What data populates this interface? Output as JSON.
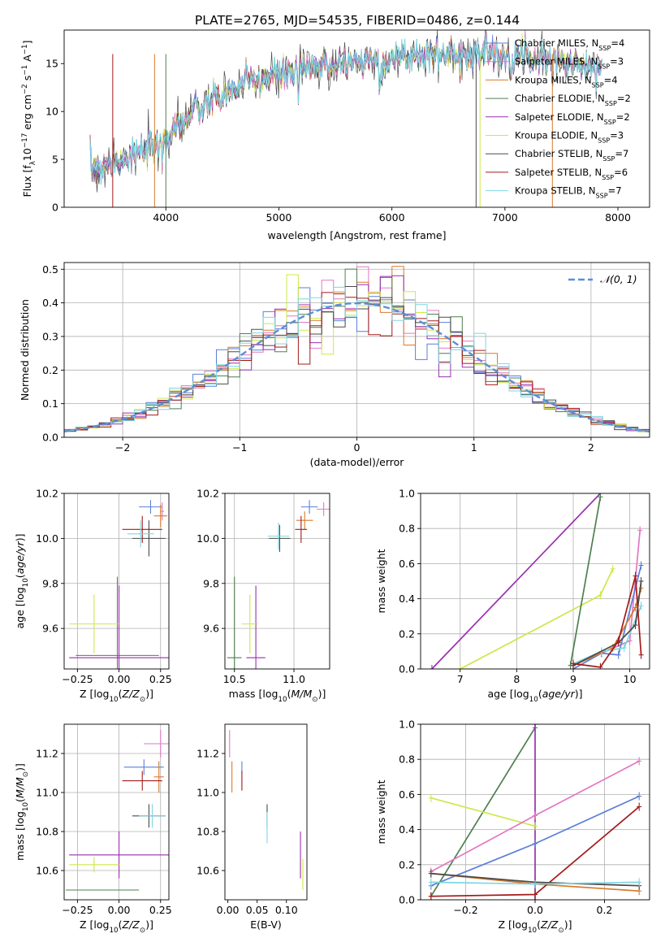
{
  "figure": {
    "title": "PLATE=2765, MJD=54535, FIBERID=0486, z=0.144"
  },
  "colors": {
    "chabrier_miles": "#5b7fd9",
    "salpeter_miles": "#e377c2",
    "kroupa_miles": "#d97a2b",
    "chabrier_elodie": "#4f7f4f",
    "salpeter_elodie": "#9a2fb0",
    "kroupa_elodie": "#cde84a",
    "chabrier_stelib": "#4a4a4a",
    "salpeter_stelib": "#a31a1a",
    "kroupa_stelib": "#7fd6e0",
    "gauss": "#5b8fd6",
    "grid": "#b0b0b0"
  },
  "chart_data": [
    {
      "id": "spectrum",
      "type": "line",
      "title": "PLATE=2765, MJD=54535, FIBERID=0486, z=0.144",
      "xlabel": "wavelength [Angstrom, rest frame]",
      "ylabel": "Flux [fλ10⁻¹⁷ erg cm⁻² s⁻¹ A⁻¹]",
      "xlim": [
        3100,
        8280
      ],
      "ylim": [
        0,
        18.5
      ],
      "xticks": [
        4000,
        5000,
        6000,
        7000,
        8000
      ],
      "yticks": [
        0,
        5,
        10,
        15
      ],
      "grid": false,
      "legend_position": "top-right",
      "series": [
        {
          "name": "Chabrier MILES, N",
          "sub": "SSP",
          "suffix": "=4",
          "color": "#5b7fd9"
        },
        {
          "name": "Salpeter MILES, N",
          "sub": "SSP",
          "suffix": "=3",
          "color": "#e377c2"
        },
        {
          "name": "Kroupa MILES, N",
          "sub": "SSP",
          "suffix": "=4",
          "color": "#d97a2b"
        },
        {
          "name": "Chabrier ELODIE, N",
          "sub": "SSP",
          "suffix": "=2",
          "color": "#4f7f4f"
        },
        {
          "name": "Salpeter ELODIE, N",
          "sub": "SSP",
          "suffix": "=2",
          "color": "#9a2fb0"
        },
        {
          "name": "Kroupa ELODIE, N",
          "sub": "SSP",
          "suffix": "=3",
          "color": "#cde84a"
        },
        {
          "name": "Chabrier STELIB, N",
          "sub": "SSP",
          "suffix": "=7",
          "color": "#4a4a4a"
        },
        {
          "name": "Salpeter STELIB, N",
          "sub": "SSP",
          "suffix": "=6",
          "color": "#a31a1a"
        },
        {
          "name": "Kroupa STELIB, N",
          "sub": "SSP",
          "suffix": "=7",
          "color": "#7fd6e0"
        }
      ],
      "continuum_x": [
        3330,
        3500,
        3700,
        3900,
        4100,
        4300,
        4500,
        4700,
        4900,
        5100,
        5300,
        5500,
        5700,
        5900,
        6100,
        6300,
        6500,
        6700,
        6900,
        7100,
        7300,
        7500,
        7700,
        7860
      ],
      "continuum_y": [
        4.3,
        4.6,
        5.4,
        6.3,
        8.6,
        10.2,
        11.6,
        12.8,
        13.6,
        14.0,
        14.5,
        15.0,
        15.3,
        15.4,
        15.6,
        15.8,
        16.0,
        16.0,
        16.0,
        16.0,
        15.7,
        15.2,
        14.8,
        14.4
      ],
      "noise_amplitude": 1.2
    },
    {
      "id": "residuals",
      "type": "histogram",
      "xlabel": "(data-model)/error",
      "ylabel": "Normed distribution",
      "xlim": [
        -2.5,
        2.5
      ],
      "ylim": [
        0,
        0.52
      ],
      "xticks": [
        -2,
        -1,
        0,
        1,
        2
      ],
      "yticks": [
        0.0,
        0.1,
        0.2,
        0.3,
        0.4,
        0.5
      ],
      "grid": true,
      "legend_position": "top-right",
      "legend_label": "𝒩(0, 1)",
      "bin_width": 0.1,
      "gaussian": {
        "mean": 0,
        "sigma": 1
      }
    },
    {
      "id": "age_Z",
      "type": "scatter",
      "xlabel": "Z [log₁₀(Z/Z⊙)]",
      "ylabel": "age  [log₁₀(age/yr)]",
      "xlim": [
        -0.33,
        0.3
      ],
      "ylim": [
        9.42,
        10.2
      ],
      "xticks": [
        -0.25,
        0.0,
        0.25
      ],
      "yticks": [
        9.6,
        9.8,
        10.0,
        10.2
      ],
      "grid": true,
      "points": [
        {
          "c": "chabrier_miles",
          "x": 0.19,
          "y": 10.14,
          "xe": 0.07,
          "ye": 0.03
        },
        {
          "c": "salpeter_miles",
          "x": 0.26,
          "y": 10.12,
          "xe": 0.01,
          "ye": 0.04
        },
        {
          "c": "kroupa_miles",
          "x": 0.25,
          "y": 10.1,
          "xe": 0.04,
          "ye": 0.05
        },
        {
          "c": "chabrier_elodie",
          "x": -0.01,
          "y": 9.48,
          "xe": 0.25,
          "ye": 0.35
        },
        {
          "c": "salpeter_elodie",
          "x": 0.0,
          "y": 9.47,
          "xe": 0.3,
          "ye": 0.32
        },
        {
          "c": "kroupa_elodie",
          "x": -0.15,
          "y": 9.62,
          "xe": 0.15,
          "ye": 0.13
        },
        {
          "c": "chabrier_stelib",
          "x": 0.18,
          "y": 10.0,
          "xe": 0.1,
          "ye": 0.08
        },
        {
          "c": "salpeter_stelib",
          "x": 0.14,
          "y": 10.04,
          "xe": 0.12,
          "ye": 0.06
        },
        {
          "c": "kroupa_stelib",
          "x": 0.13,
          "y": 10.02,
          "xe": 0.08,
          "ye": 0.06
        }
      ]
    },
    {
      "id": "age_mass",
      "type": "scatter",
      "xlabel": "mass [log₁₀(M/M⊙)]",
      "ylabel": "",
      "xlim": [
        10.42,
        11.3
      ],
      "ylim": [
        9.42,
        10.2
      ],
      "xticks": [
        10.5,
        11.0
      ],
      "yticks": [
        9.6,
        9.8,
        10.0,
        10.2
      ],
      "grid": true,
      "points": [
        {
          "c": "chabrier_miles",
          "x": 11.13,
          "y": 10.14,
          "xe": 0.07,
          "ye": 0.03
        },
        {
          "c": "salpeter_miles",
          "x": 11.25,
          "y": 10.13,
          "xe": 0.06,
          "ye": 0.03
        },
        {
          "c": "kroupa_miles",
          "x": 11.09,
          "y": 10.08,
          "xe": 0.07,
          "ye": 0.04
        },
        {
          "c": "chabrier_elodie",
          "x": 10.5,
          "y": 9.47,
          "xe": 0.06,
          "ye": 0.36
        },
        {
          "c": "salpeter_elodie",
          "x": 10.68,
          "y": 9.47,
          "xe": 0.08,
          "ye": 0.32
        },
        {
          "c": "kroupa_elodie",
          "x": 10.63,
          "y": 9.62,
          "xe": 0.07,
          "ye": 0.13
        },
        {
          "c": "chabrier_stelib",
          "x": 10.88,
          "y": 10.0,
          "xe": 0.09,
          "ye": 0.06
        },
        {
          "c": "salpeter_stelib",
          "x": 11.06,
          "y": 10.04,
          "xe": 0.05,
          "ye": 0.06
        },
        {
          "c": "kroupa_stelib",
          "x": 10.87,
          "y": 10.01,
          "xe": 0.09,
          "ye": 0.06
        }
      ]
    },
    {
      "id": "weight_age",
      "type": "line",
      "xlabel": "age  [log₁₀(age/yr)]",
      "ylabel": "mass weight",
      "xlim": [
        6.3,
        10.35
      ],
      "ylim": [
        0,
        1.0
      ],
      "xticks": [
        7,
        8,
        9,
        10
      ],
      "yticks": [
        0.0,
        0.2,
        0.4,
        0.6,
        0.8,
        1.0
      ],
      "grid": true,
      "series": [
        {
          "c": "salpeter_elodie",
          "x": [
            6.5,
            9.48
          ],
          "y": [
            0.0,
            1.0
          ]
        },
        {
          "c": "kroupa_elodie",
          "x": [
            7.0,
            9.48,
            9.7
          ],
          "y": [
            0.0,
            0.42,
            0.57
          ]
        },
        {
          "c": "chabrier_elodie",
          "x": [
            8.95,
            9.48
          ],
          "y": [
            0.02,
            0.98
          ]
        },
        {
          "c": "salpeter_miles",
          "x": [
            9.0,
            9.5,
            10.0,
            10.18
          ],
          "y": [
            0.02,
            0.09,
            0.16,
            0.79
          ]
        },
        {
          "c": "chabrier_miles",
          "x": [
            9.0,
            9.5,
            9.8,
            10.2
          ],
          "y": [
            0.0,
            0.09,
            0.08,
            0.59
          ]
        },
        {
          "c": "kroupa_miles",
          "x": [
            9.0,
            9.7,
            10.1,
            10.2
          ],
          "y": [
            0.02,
            0.12,
            0.35,
            0.46
          ]
        },
        {
          "c": "kroupa_stelib",
          "x": [
            9.0,
            9.5,
            9.9,
            10.2
          ],
          "y": [
            0.03,
            0.1,
            0.12,
            0.36
          ]
        },
        {
          "c": "chabrier_stelib",
          "x": [
            9.0,
            9.8,
            10.1,
            10.2
          ],
          "y": [
            0.02,
            0.15,
            0.25,
            0.5
          ]
        },
        {
          "c": "salpeter_stelib",
          "x": [
            9.0,
            9.48,
            9.8,
            10.1,
            10.2
          ],
          "y": [
            0.03,
            0.01,
            0.16,
            0.53,
            0.08
          ]
        }
      ]
    },
    {
      "id": "mass_Z",
      "type": "scatter",
      "xlabel": "Z [log₁₀(Z/Z⊙)]",
      "ylabel": "mass [log₁₀(M/M⊙)]",
      "xlim": [
        -0.33,
        0.3
      ],
      "ylim": [
        10.45,
        11.35
      ],
      "xticks": [
        -0.25,
        0.0,
        0.25
      ],
      "yticks": [
        10.6,
        10.8,
        11.0,
        11.2
      ],
      "grid": true,
      "points": [
        {
          "c": "chabrier_miles",
          "x": 0.15,
          "y": 11.13,
          "xe": 0.12,
          "ye": 0.04
        },
        {
          "c": "salpeter_miles",
          "x": 0.25,
          "y": 11.25,
          "xe": 0.1,
          "ye": 0.07
        },
        {
          "c": "kroupa_miles",
          "x": 0.24,
          "y": 11.08,
          "xe": 0.03,
          "ye": 0.08
        },
        {
          "c": "chabrier_elodie",
          "x": -0.1,
          "y": 10.5,
          "xe": 0.22,
          "ye": 0.0
        },
        {
          "c": "salpeter_elodie",
          "x": 0.0,
          "y": 10.68,
          "xe": 0.3,
          "ye": 0.12
        },
        {
          "c": "kroupa_elodie",
          "x": -0.15,
          "y": 10.63,
          "xe": 0.15,
          "ye": 0.04
        },
        {
          "c": "chabrier_stelib",
          "x": 0.18,
          "y": 10.88,
          "xe": 0.1,
          "ye": 0.06
        },
        {
          "c": "salpeter_stelib",
          "x": 0.14,
          "y": 11.06,
          "xe": 0.12,
          "ye": 0.05
        },
        {
          "c": "kroupa_stelib",
          "x": 0.2,
          "y": 10.88,
          "xe": 0.08,
          "ye": 0.06
        }
      ]
    },
    {
      "id": "mass_ebv",
      "type": "scatter",
      "xlabel": "E(B-V)",
      "ylabel": "",
      "xlim": [
        -0.005,
        0.135
      ],
      "ylim": [
        10.45,
        11.35
      ],
      "xticks": [
        0.0,
        0.05,
        0.1
      ],
      "yticks": [
        10.6,
        10.8,
        11.0,
        11.2
      ],
      "grid": false,
      "points": [
        {
          "c": "salpeter_miles",
          "x": 0.003,
          "y": 11.25,
          "xe": 0.0,
          "ye": 0.07
        },
        {
          "c": "kroupa_miles",
          "x": 0.007,
          "y": 11.08,
          "xe": 0.0,
          "ye": 0.08
        },
        {
          "c": "chabrier_miles",
          "x": 0.024,
          "y": 11.13,
          "xe": 0.0,
          "ye": 0.03
        },
        {
          "c": "salpeter_stelib",
          "x": 0.024,
          "y": 11.06,
          "xe": 0.0,
          "ye": 0.05
        },
        {
          "c": "chabrier_stelib",
          "x": 0.067,
          "y": 10.88,
          "xe": 0.0,
          "ye": 0.06
        },
        {
          "c": "kroupa_stelib",
          "x": 0.067,
          "y": 10.82,
          "xe": 0.0,
          "ye": 0.08
        },
        {
          "c": "salpeter_elodie",
          "x": 0.124,
          "y": 10.68,
          "xe": 0.0,
          "ye": 0.12
        },
        {
          "c": "kroupa_elodie",
          "x": 0.128,
          "y": 10.58,
          "xe": 0.0,
          "ye": 0.08
        }
      ]
    },
    {
      "id": "weight_Z",
      "type": "line",
      "xlabel": "Z [log₁₀(Z/Z⊙)]",
      "ylabel": "mass weight",
      "xlim": [
        -0.33,
        0.33
      ],
      "ylim": [
        0,
        1.0
      ],
      "xticks": [
        -0.2,
        0.0,
        0.2
      ],
      "yticks": [
        0.0,
        0.2,
        0.4,
        0.6,
        0.8,
        1.0
      ],
      "grid": true,
      "series": [
        {
          "c": "chabrier_elodie",
          "x": [
            -0.3,
            0.0
          ],
          "y": [
            0.02,
            0.98
          ]
        },
        {
          "c": "salpeter_elodie",
          "x": [
            0.0,
            0.0
          ],
          "y": [
            0.0,
            1.0
          ]
        },
        {
          "c": "kroupa_elodie",
          "x": [
            -0.3,
            0.0
          ],
          "y": [
            0.58,
            0.42
          ]
        },
        {
          "c": "salpeter_miles",
          "x": [
            -0.3,
            0.0,
            0.3
          ],
          "y": [
            0.16,
            0.48,
            0.79
          ]
        },
        {
          "c": "chabrier_miles",
          "x": [
            -0.3,
            0.0,
            0.3
          ],
          "y": [
            0.08,
            0.32,
            0.59
          ]
        },
        {
          "c": "kroupa_miles",
          "x": [
            -0.3,
            0.0,
            0.3
          ],
          "y": [
            0.15,
            0.09,
            0.05
          ]
        },
        {
          "c": "salpeter_stelib",
          "x": [
            -0.3,
            0.0,
            0.3
          ],
          "y": [
            0.02,
            0.03,
            0.53
          ]
        },
        {
          "c": "chabrier_stelib",
          "x": [
            -0.3,
            0.0,
            0.3
          ],
          "y": [
            0.15,
            0.1,
            0.08
          ]
        },
        {
          "c": "kroupa_stelib",
          "x": [
            -0.3,
            0.0,
            0.3
          ],
          "y": [
            0.1,
            0.09,
            0.1
          ]
        }
      ]
    }
  ]
}
